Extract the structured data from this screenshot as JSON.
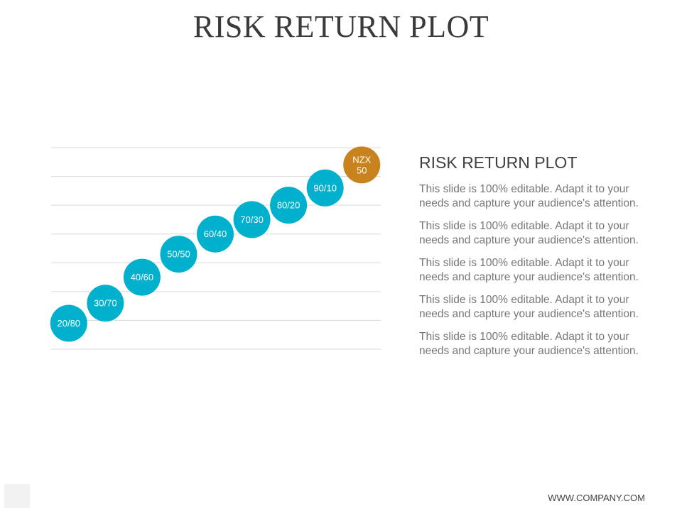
{
  "slide": {
    "title": "RISK RETURN PLOT",
    "footer": "WWW.COMPANY.COM"
  },
  "panel": {
    "title": "RISK RETURN PLOT",
    "paragraphs": [
      "This slide is 100% editable. Adapt it to your needs and capture your audience's attention.",
      "This slide is 100% editable. Adapt it to your needs and capture your audience's attention.",
      "This slide is 100% editable. Adapt it to your needs and capture your audience's attention.",
      "This slide is 100% editable. Adapt it to your needs and capture your audience's attention.",
      "This slide is 100% editable. Adapt it to your needs and capture your audience's attention."
    ]
  },
  "chart_data": {
    "type": "scatter",
    "title": "",
    "xlabel": "",
    "ylabel": "",
    "grid": true,
    "xlim": [
      0,
      9
    ],
    "ylim": [
      0,
      7
    ],
    "gridlines": 8,
    "colors": {
      "portfolio": "#00b0cc",
      "benchmark": "#c9831e"
    },
    "points": [
      {
        "label": "20/80",
        "x": 0.5,
        "y": 0.9,
        "group": "portfolio"
      },
      {
        "label": "30/70",
        "x": 1.5,
        "y": 1.6,
        "group": "portfolio"
      },
      {
        "label": "40/60",
        "x": 2.5,
        "y": 2.5,
        "group": "portfolio"
      },
      {
        "label": "50/50",
        "x": 3.5,
        "y": 3.3,
        "group": "portfolio"
      },
      {
        "label": "60/40",
        "x": 4.5,
        "y": 4.0,
        "group": "portfolio"
      },
      {
        "label": "70/30",
        "x": 5.5,
        "y": 4.5,
        "group": "portfolio"
      },
      {
        "label": "80/20",
        "x": 6.5,
        "y": 5.0,
        "group": "portfolio"
      },
      {
        "label": "90/10",
        "x": 7.5,
        "y": 5.6,
        "group": "portfolio"
      },
      {
        "label": "NZX\n50",
        "x": 8.5,
        "y": 6.4,
        "group": "benchmark"
      }
    ]
  }
}
